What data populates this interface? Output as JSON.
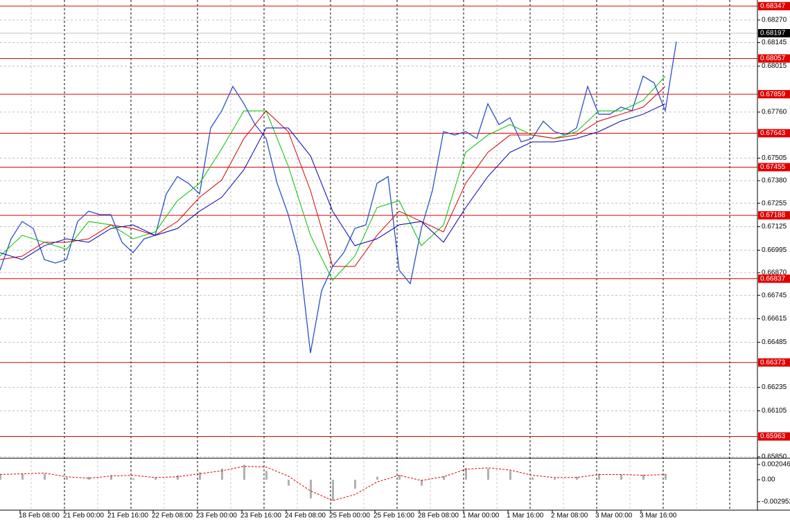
{
  "chart_data": {
    "type": "line",
    "ylim": [
      0.6585,
      0.68381
    ],
    "yticks": [
      {
        "value": 0.6827,
        "label": "0.68270"
      },
      0.68145,
      0.68015,
      {
        "value": 0.6776,
        "label": "0.67760"
      },
      0.67505,
      {
        "value": 0.6738,
        "label": "0.67380"
      },
      0.67255,
      0.67125,
      0.66995,
      {
        "value": 0.6687,
        "label": "0.66870"
      },
      0.66745,
      0.66615,
      0.66485,
      0.66235,
      0.66105,
      {
        "value": 0.6585,
        "label": "0.65850"
      }
    ],
    "grid": true,
    "levels": [
      0.68347,
      0.68057,
      0.67859,
      0.67643,
      0.67455,
      0.67188,
      0.66837,
      0.66373,
      0.65963
    ],
    "level_color": "#e00000",
    "current_price": 0.68197,
    "xticks": [
      "18 Feb 08:00",
      "21 Feb 00:00",
      "21 Feb 16:00",
      "22 Feb 08:00",
      "23 Feb 00:00",
      "23 Feb 16:00",
      "24 Feb 08:00",
      "25 Feb 00:00",
      "25 Feb 16:00",
      "28 Feb 08:00",
      "1 Mar 00:00",
      "1 Mar 16:00",
      "2 Mar 08:00",
      "3 Mar 00:00",
      "3 Mar 16:00"
    ],
    "series": [
      {
        "color": "#2850c8",
        "values": [
          0.66885,
          0.67058,
          0.67154,
          0.67115,
          0.66943,
          0.66924,
          0.66943,
          0.67154,
          0.67211,
          0.67192,
          0.67192,
          0.67039,
          0.66981,
          0.67058,
          0.67077,
          0.67307,
          0.67403,
          0.67365,
          0.67307,
          0.67672,
          0.67767,
          0.67902,
          0.67806,
          0.67691,
          0.67614,
          0.67365,
          0.67192,
          0.66962,
          0.66425,
          0.6677,
          0.66905,
          0.66981,
          0.67115,
          0.67135,
          0.67365,
          0.67403,
          0.66885,
          0.66809,
          0.67115,
          0.67326,
          0.67652,
          0.67633,
          0.67652,
          0.67614,
          0.67806,
          0.67691,
          0.67729,
          0.67595,
          0.67614,
          0.6771,
          0.67652,
          0.67633,
          0.67672,
          0.67902,
          0.67748,
          0.67748,
          0.67787,
          0.67767,
          0.67959,
          0.67921,
          0.67767,
          0.68151
        ]
      },
      {
        "color": "#00c000",
        "values": [
          0.66962,
          0.67077,
          0.67039,
          0.67,
          0.67154,
          0.67135,
          0.67058,
          0.67096,
          0.67269,
          0.67365,
          0.67557,
          0.67767,
          0.67767,
          0.67461,
          0.67077,
          0.66828,
          0.66962,
          0.67231,
          0.67269,
          0.6702,
          0.67135,
          0.67537,
          0.67633,
          0.67691,
          0.67633,
          0.67614,
          0.67652,
          0.67767,
          0.67767,
          0.67825,
          0.67959
        ]
      },
      {
        "color": "#d00000",
        "values": [
          0.66943,
          0.66962,
          0.67039,
          0.67039,
          0.67058,
          0.67135,
          0.67115,
          0.67077,
          0.67154,
          0.67288,
          0.67384,
          0.67614,
          0.67767,
          0.67652,
          0.67326,
          0.66905,
          0.66905,
          0.67077,
          0.67211,
          0.67154,
          0.67096,
          0.67365,
          0.67537,
          0.67633,
          0.67633,
          0.67614,
          0.67633,
          0.6771,
          0.67748,
          0.67787,
          0.67902
        ]
      },
      {
        "color": "#0000b0",
        "values": [
          0.66981,
          0.66943,
          0.6702,
          0.67058,
          0.67039,
          0.67115,
          0.67135,
          0.67077,
          0.67115,
          0.67211,
          0.67288,
          0.67441,
          0.67672,
          0.67672,
          0.67518,
          0.67211,
          0.6702,
          0.67058,
          0.67135,
          0.67154,
          0.67039,
          0.67231,
          0.67403,
          0.67537,
          0.67595,
          0.67595,
          0.67614,
          0.67652,
          0.6771,
          0.67748,
          0.67806
        ]
      }
    ],
    "oscillator": {
      "ylim": [
        -0.0039,
        0.0027
      ],
      "yticks": [
        0.002046,
        {
          "value": 0,
          "label": "0.00"
        },
        -0.002952
      ],
      "histogram": {
        "color": "#b0b0b0",
        "values": [
          0.0007,
          0.0008,
          0.0008,
          0.0003,
          0.0004,
          0.0006,
          0.0002,
          0.0003,
          0.0006,
          0.001,
          0.0015,
          0.002,
          0.0012,
          -0.0008,
          -0.0025,
          -0.0028,
          -0.0012,
          0.0004,
          0.0006,
          -0.0008,
          0.0005,
          0.0016,
          0.0015,
          0.0012,
          0.0003,
          0.0002,
          0.0004,
          0.0008,
          0.0007,
          0.0007,
          0.0008
        ]
      },
      "signal": {
        "color": "#e00000",
        "values": [
          0.0007,
          0.0008,
          0.0009,
          0.0004,
          0.0002,
          0.0005,
          0.0006,
          0.0003,
          0.0004,
          0.0008,
          0.0012,
          0.0018,
          0.0017,
          0.0005,
          -0.0015,
          -0.0028,
          -0.002,
          -0.0003,
          0.0006,
          -0.0001,
          0.0004,
          0.0014,
          0.0016,
          0.0013,
          0.0006,
          0.0003,
          0.0003,
          0.0007,
          0.0007,
          0.0006,
          0.0007
        ]
      }
    }
  }
}
